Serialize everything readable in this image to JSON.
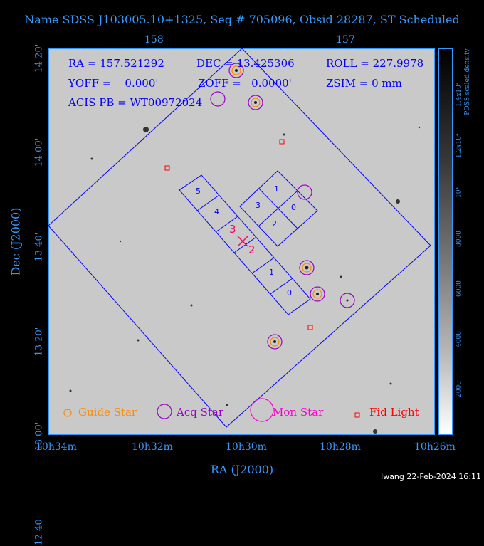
{
  "title": "Name SDSS J103005.10+1325, Seq # 705096, Obsid 28287, ST Scheduled",
  "axes": {
    "top_ticks": [
      "158",
      "157"
    ],
    "bottom_ticks": [
      "10h34m",
      "10h32m",
      "10h30m",
      "10h28m",
      "10h26m"
    ],
    "left_ticks": [
      "14 20'",
      "14 00'",
      "13 40'",
      "13 20'",
      "13 00'",
      "12 40'"
    ],
    "xlabel": "RA (J2000)",
    "ylabel": "Dec (J2000)"
  },
  "info": {
    "ra": "RA = 157.521292",
    "dec": "DEC = 13.425306",
    "roll": "ROLL = 227.9978",
    "yoff": "YOFF =    0.000'",
    "zoff": "ZOFF =   0.0000'",
    "zsim": "ZSIM = 0 mm",
    "acis_pb": "ACIS PB = WT00972024"
  },
  "ccd_labels": [
    "5",
    "4",
    "3",
    "2",
    "1",
    "0",
    "1",
    "3",
    "0",
    "2"
  ],
  "legend": {
    "guide": "Guide Star",
    "acq": "Acq Star",
    "mon": "Mon Star",
    "fid": "Fid Light"
  },
  "colorbar": {
    "label": "POSS scaled density",
    "ticks": [
      "1.4x10⁴",
      "1.2x10⁴",
      "10⁴",
      "8000",
      "6000",
      "4000",
      "2000"
    ]
  },
  "colors": {
    "axis": "#3399ff",
    "overlay": "#0000ff",
    "acq": "#9900cc",
    "mon": "#ff00cc",
    "guide": "#ff8800",
    "fid": "#ff0000",
    "aimpoint": "#ff0066"
  },
  "stamp": "lwang 22-Feb-2024 16:11"
}
